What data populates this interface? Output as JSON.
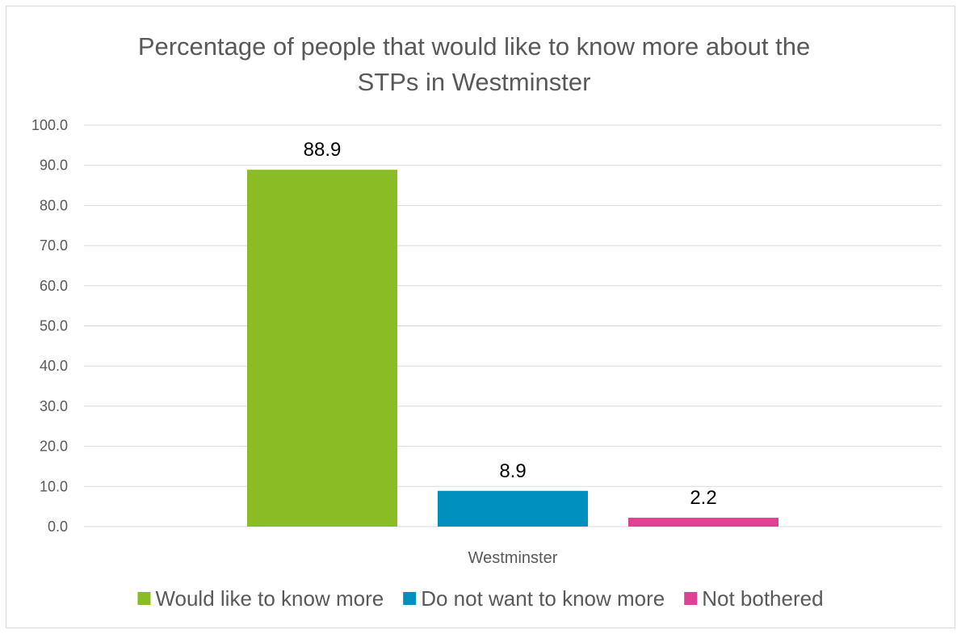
{
  "chart_data": {
    "type": "bar",
    "title": "Percentage of people that would like to know more about the STPs in Westminster",
    "title_lines": [
      "Percentage of people that would like to know more about the",
      "STPs in Westminster"
    ],
    "categories": [
      "Westminster"
    ],
    "series": [
      {
        "name": "Would like to know more",
        "values": [
          88.9
        ],
        "color": "#8abd24",
        "label": "88.9"
      },
      {
        "name": "Do not want to know more",
        "values": [
          8.9
        ],
        "color": "#0090c0",
        "label": "8.9"
      },
      {
        "name": "Not bothered",
        "values": [
          2.2
        ],
        "color": "#df4195",
        "label": "2.2"
      }
    ],
    "ylim": [
      0,
      100
    ],
    "yticks": [
      "0.0",
      "10.0",
      "20.0",
      "30.0",
      "40.0",
      "50.0",
      "60.0",
      "70.0",
      "80.0",
      "90.0",
      "100.0"
    ],
    "grid": true,
    "legend_position": "bottom",
    "xlabel": "",
    "ylabel": ""
  }
}
